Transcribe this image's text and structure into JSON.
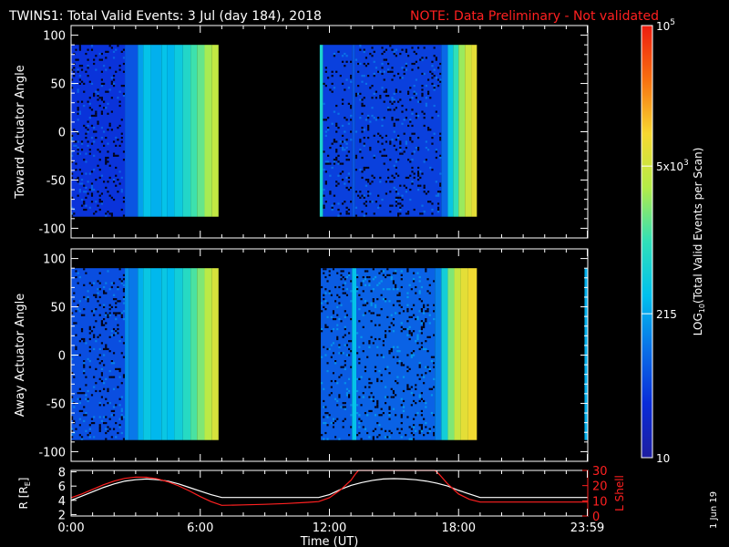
{
  "header": {
    "title": "TWINS1: Total Valid Events:  3 Jul (day 184), 2018",
    "note": "NOTE: Data Preliminary - Not validated"
  },
  "footer": {
    "date_stamp": "1 Jun 19"
  },
  "colors": {
    "background": "#000000",
    "axes": "#ffffff",
    "note": "#ff2020",
    "r_curve": "#ffffff",
    "lshell_curve": "#ff2020",
    "lshell_axis": "#ff2020"
  },
  "chart_data": [
    {
      "type": "heatmap",
      "panel": "toward",
      "title": "",
      "ylabel": "Toward Actuator Angle",
      "xlim_hours": [
        0,
        24
      ],
      "ylim": [
        -110,
        110
      ],
      "yticks": [
        100,
        50,
        0,
        -50,
        -100
      ],
      "ytick_labels": [
        "100",
        "50",
        "0",
        "-50",
        "-100"
      ],
      "grid": false,
      "data_y_range": [
        -88,
        90
      ],
      "columns": [
        {
          "t0": 0.0,
          "t1": 2.5,
          "log": 1.55,
          "speckle": true
        },
        {
          "t0": 2.5,
          "t1": 3.1,
          "log": 1.8
        },
        {
          "t0": 3.1,
          "t1": 3.35,
          "log": 2.3
        },
        {
          "t0": 3.35,
          "t1": 3.7,
          "log": 2.55
        },
        {
          "t0": 3.7,
          "t1": 4.2,
          "log": 2.4
        },
        {
          "t0": 4.2,
          "t1": 4.45,
          "log": 2.55
        },
        {
          "t0": 4.45,
          "t1": 4.8,
          "log": 2.45
        },
        {
          "t0": 4.8,
          "t1": 5.2,
          "log": 2.65
        },
        {
          "t0": 5.2,
          "t1": 5.55,
          "log": 2.85
        },
        {
          "t0": 5.55,
          "t1": 5.85,
          "log": 3.05
        },
        {
          "t0": 5.85,
          "t1": 6.2,
          "log": 3.2
        },
        {
          "t0": 6.2,
          "t1": 6.55,
          "log": 3.45
        },
        {
          "t0": 6.55,
          "t1": 6.85,
          "log": 3.6
        },
        {
          "t0": 11.55,
          "t1": 11.7,
          "log": 2.8
        },
        {
          "t0": 11.7,
          "t1": 13.05,
          "log": 1.65,
          "speckle": true
        },
        {
          "t0": 13.05,
          "t1": 13.2,
          "log": 1.8
        },
        {
          "t0": 13.2,
          "t1": 17.2,
          "log": 1.65,
          "speckle": true
        },
        {
          "t0": 17.2,
          "t1": 17.5,
          "log": 1.95
        },
        {
          "t0": 17.5,
          "t1": 17.75,
          "log": 2.6
        },
        {
          "t0": 17.75,
          "t1": 18.0,
          "log": 3.0
        },
        {
          "t0": 18.0,
          "t1": 18.3,
          "log": 3.4
        },
        {
          "t0": 18.3,
          "t1": 18.6,
          "log": 3.7
        },
        {
          "t0": 18.6,
          "t1": 18.85,
          "log": 3.85
        }
      ]
    },
    {
      "type": "heatmap",
      "panel": "away",
      "title": "",
      "ylabel": "Away Actuator Angle",
      "xlim_hours": [
        0,
        24
      ],
      "ylim": [
        -110,
        110
      ],
      "yticks": [
        100,
        50,
        0,
        -50,
        -100
      ],
      "ytick_labels": [
        "100",
        "50",
        "0",
        "-50",
        "-100"
      ],
      "grid": false,
      "data_y_range": [
        -88,
        90
      ],
      "columns": [
        {
          "t0": 0.0,
          "t1": 2.5,
          "log": 1.75,
          "speckle": true
        },
        {
          "t0": 2.5,
          "t1": 2.7,
          "log": 2.2
        },
        {
          "t0": 2.7,
          "t1": 3.1,
          "log": 2.05
        },
        {
          "t0": 3.1,
          "t1": 3.35,
          "log": 2.4
        },
        {
          "t0": 3.35,
          "t1": 3.7,
          "log": 2.6
        },
        {
          "t0": 3.7,
          "t1": 4.2,
          "log": 2.45
        },
        {
          "t0": 4.2,
          "t1": 4.45,
          "log": 2.6
        },
        {
          "t0": 4.45,
          "t1": 4.8,
          "log": 2.5
        },
        {
          "t0": 4.8,
          "t1": 5.2,
          "log": 2.7
        },
        {
          "t0": 5.2,
          "t1": 5.55,
          "log": 2.9
        },
        {
          "t0": 5.55,
          "t1": 5.85,
          "log": 3.1
        },
        {
          "t0": 5.85,
          "t1": 6.2,
          "log": 3.3
        },
        {
          "t0": 6.2,
          "t1": 6.55,
          "log": 3.55
        },
        {
          "t0": 6.55,
          "t1": 6.85,
          "log": 3.75
        },
        {
          "t0": 11.6,
          "t1": 13.05,
          "log": 1.85,
          "speckle": true
        },
        {
          "t0": 13.05,
          "t1": 13.25,
          "log": 2.55
        },
        {
          "t0": 13.25,
          "t1": 16.9,
          "log": 1.9,
          "speckle": true
        },
        {
          "t0": 16.9,
          "t1": 17.2,
          "log": 2.1
        },
        {
          "t0": 17.2,
          "t1": 17.5,
          "log": 2.7
        },
        {
          "t0": 17.5,
          "t1": 17.8,
          "log": 3.3
        },
        {
          "t0": 17.8,
          "t1": 18.1,
          "log": 3.65
        },
        {
          "t0": 18.1,
          "t1": 18.45,
          "log": 3.85
        },
        {
          "t0": 18.45,
          "t1": 18.85,
          "log": 3.95
        },
        {
          "t0": 23.85,
          "t1": 23.98,
          "log": 2.4
        }
      ]
    },
    {
      "type": "line",
      "panel": "orbit",
      "ylabel": "R [Rₑ]",
      "ylabel_main": "R [R",
      "ylabel_sub": "E",
      "ylabel_close": "]",
      "ylim": [
        1.8,
        8.2
      ],
      "yticks": [
        2,
        4,
        6,
        8
      ],
      "ytick_labels": [
        "2",
        "4",
        "6",
        "8"
      ],
      "y2label": "L Shell",
      "y2lim": [
        0,
        30
      ],
      "y2ticks": [
        0,
        10,
        20,
        30
      ],
      "y2tick_labels": [
        "0",
        "10",
        "20",
        "30"
      ],
      "xlabel": "Time (UT)",
      "xlim_hours": [
        0,
        24
      ],
      "xticks_hours": [
        0,
        6,
        12,
        18,
        23.98
      ],
      "xtick_labels": [
        "0:00",
        "6:00",
        "12:00",
        "18:00",
        "23:59"
      ],
      "series": [
        {
          "name": "R",
          "axis": "left",
          "x": [
            0,
            0.5,
            1.0,
            1.5,
            2.0,
            2.5,
            3.0,
            3.5,
            4.0,
            4.5,
            5.0,
            5.5,
            6.0,
            6.5,
            7.0,
            8.0,
            9.0,
            10.0,
            11.0,
            11.5,
            12.0,
            12.5,
            13.0,
            13.5,
            14.0,
            14.5,
            15.0,
            15.5,
            16.0,
            16.5,
            17.0,
            17.5,
            18.0,
            18.5,
            19.0,
            20.0,
            21.0,
            22.0,
            23.0,
            24.0
          ],
          "y": [
            4.0,
            4.6,
            5.2,
            5.8,
            6.3,
            6.7,
            6.9,
            7.0,
            6.9,
            6.7,
            6.3,
            5.8,
            5.3,
            4.8,
            4.4,
            4.4,
            4.4,
            4.4,
            4.4,
            4.4,
            4.8,
            5.5,
            6.1,
            6.5,
            6.8,
            7.0,
            7.05,
            7.0,
            6.9,
            6.7,
            6.4,
            6.0,
            5.4,
            4.9,
            4.4,
            4.4,
            4.4,
            4.4,
            4.4,
            4.4
          ]
        },
        {
          "name": "L Shell",
          "axis": "right",
          "x": [
            0,
            0.5,
            1.0,
            1.5,
            2.0,
            2.5,
            3.0,
            3.5,
            4.0,
            4.5,
            5.0,
            5.5,
            6.0,
            6.5,
            7.0,
            8.0,
            9.0,
            10.0,
            11.0,
            11.5,
            12.0,
            12.5,
            13.0,
            13.2,
            13.35,
            16.9,
            17.1,
            17.5,
            18.0,
            18.5,
            19.0,
            20.0,
            21.0,
            22.0,
            23.0,
            24.0
          ],
          "y": [
            12.0,
            14.5,
            17.5,
            20.5,
            23.0,
            24.8,
            25.6,
            25.5,
            24.5,
            22.5,
            19.8,
            16.5,
            12.8,
            9.5,
            7.0,
            7.3,
            7.7,
            8.2,
            9.0,
            9.5,
            12.0,
            17.0,
            23.5,
            27.5,
            30.0,
            30.0,
            27.5,
            21.0,
            14.5,
            11.0,
            9.2,
            9.2,
            9.2,
            9.2,
            9.2,
            9.2
          ]
        }
      ]
    },
    {
      "type": "colorbar",
      "label": "LOG",
      "label_sub": "10",
      "label_rest": "(Total Valid Events per Scan)",
      "range_log10": [
        1,
        5
      ],
      "tick_values": [
        1,
        2.3324,
        3.699,
        5
      ],
      "tick_labels": [
        {
          "main": "10",
          "exp": "",
          "suffix": ""
        },
        {
          "main": "215",
          "exp": "",
          "suffix": ""
        },
        {
          "main": "5x10",
          "exp": "3",
          "suffix": ""
        },
        {
          "main": "10",
          "exp": "5",
          "suffix": ""
        }
      ],
      "colorscale": [
        "#1e1ea0",
        "#0a2cd8",
        "#0a70e8",
        "#00c0ee",
        "#30e0b8",
        "#b4ec48",
        "#f8d830",
        "#f87010",
        "#ee1c10"
      ]
    }
  ]
}
